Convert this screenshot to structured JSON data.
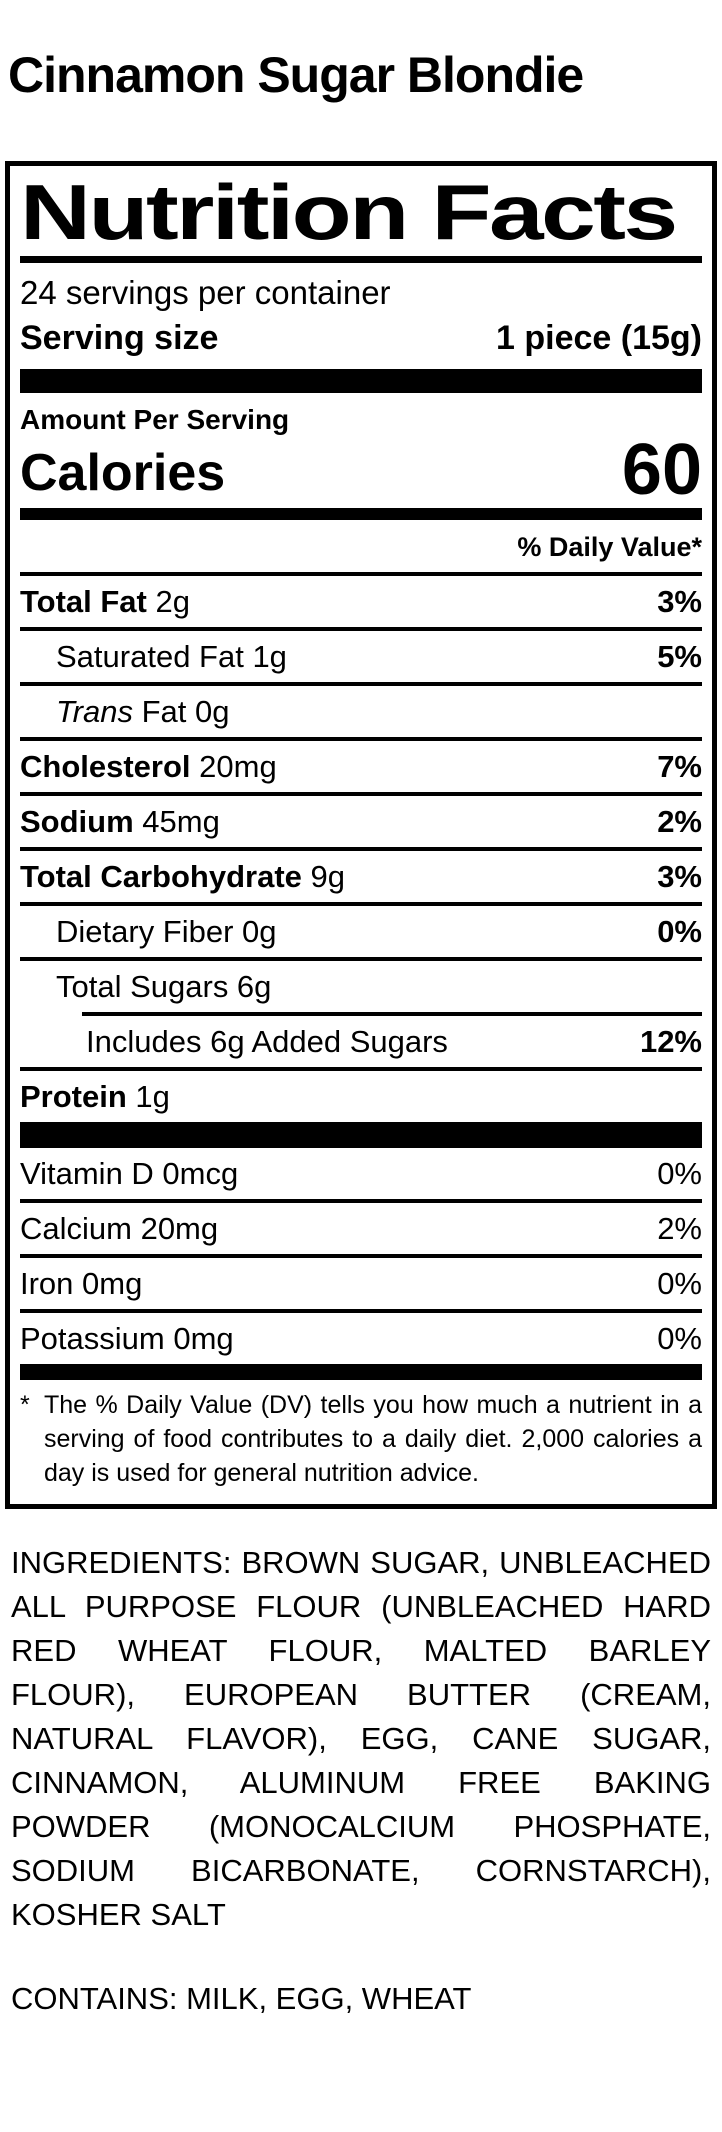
{
  "product": {
    "title": "Cinnamon Sugar Blondie"
  },
  "nutrition_label": {
    "heading": "Nutrition Facts",
    "servings_per_container": "24 servings per container",
    "serving_size": {
      "label": "Serving size",
      "value": "1 piece (15g)"
    },
    "amount_per_serving": "Amount Per Serving",
    "calories": {
      "label": "Calories",
      "value": "60"
    },
    "daily_value_header": "% Daily Value*",
    "nutrients": [
      {
        "parts": [
          {
            "t": "Total Fat",
            "b": true
          },
          {
            "t": " 2g"
          }
        ],
        "dv": "3%",
        "indent": 0,
        "sep": "full"
      },
      {
        "parts": [
          {
            "t": "Saturated Fat 1g"
          }
        ],
        "dv": "5%",
        "indent": 1,
        "sep": "full"
      },
      {
        "parts": [
          {
            "t": "Trans",
            "i": true
          },
          {
            "t": " Fat 0g"
          }
        ],
        "dv": "",
        "indent": 1,
        "sep": "full"
      },
      {
        "parts": [
          {
            "t": "Cholesterol",
            "b": true
          },
          {
            "t": " 20mg"
          }
        ],
        "dv": "7%",
        "indent": 0,
        "sep": "full"
      },
      {
        "parts": [
          {
            "t": "Sodium",
            "b": true
          },
          {
            "t": " 45mg"
          }
        ],
        "dv": "2%",
        "indent": 0,
        "sep": "full"
      },
      {
        "parts": [
          {
            "t": "Total Carbohydrate",
            "b": true
          },
          {
            "t": " 9g"
          }
        ],
        "dv": "3%",
        "indent": 0,
        "sep": "full"
      },
      {
        "parts": [
          {
            "t": "Dietary Fiber 0g"
          }
        ],
        "dv": "0%",
        "indent": 1,
        "sep": "full"
      },
      {
        "parts": [
          {
            "t": "Total Sugars 6g"
          }
        ],
        "dv": "",
        "indent": 1,
        "sep": "indent"
      },
      {
        "parts": [
          {
            "t": "Includes 6g Added Sugars"
          }
        ],
        "dv": "12%",
        "indent": 2,
        "sep": "full"
      },
      {
        "parts": [
          {
            "t": "Protein",
            "b": true
          },
          {
            "t": " 1g"
          }
        ],
        "dv": "",
        "indent": 0,
        "sep": "none"
      }
    ],
    "micronutrients": [
      {
        "parts": [
          {
            "t": "Vitamin D 0mcg"
          }
        ],
        "dv": "0%",
        "sep": "full"
      },
      {
        "parts": [
          {
            "t": "Calcium 20mg"
          }
        ],
        "dv": "2%",
        "sep": "full"
      },
      {
        "parts": [
          {
            "t": "Iron 0mg"
          }
        ],
        "dv": "0%",
        "sep": "full"
      },
      {
        "parts": [
          {
            "t": "Potassium 0mg"
          }
        ],
        "dv": "0%",
        "sep": "none"
      }
    ],
    "footnote": {
      "marker": "*",
      "text": "The % Daily Value (DV) tells you how much a nutrient in a serving of food contributes to a daily diet. 2,000 calories a day is used for general nutrition advice."
    }
  },
  "ingredients_text": "INGREDIENTS: BROWN SUGAR, UNBLEACHED ALL PURPOSE FLOUR (UNBLEACHED HARD RED WHEAT FLOUR, MALTED BARLEY FLOUR), EUROPEAN BUTTER (CREAM, NATURAL FLAVOR), EGG, CANE SUGAR, CINNAMON, ALUMINUM FREE BAKING POWDER (MONOCALCIUM PHOSPHATE, SODIUM BICARBONATE, CORNSTARCH), KOSHER SALT",
  "contains_text": "CONTAINS: MILK, EGG, WHEAT",
  "colors": {
    "ink": "#000000",
    "background": "#ffffff"
  }
}
